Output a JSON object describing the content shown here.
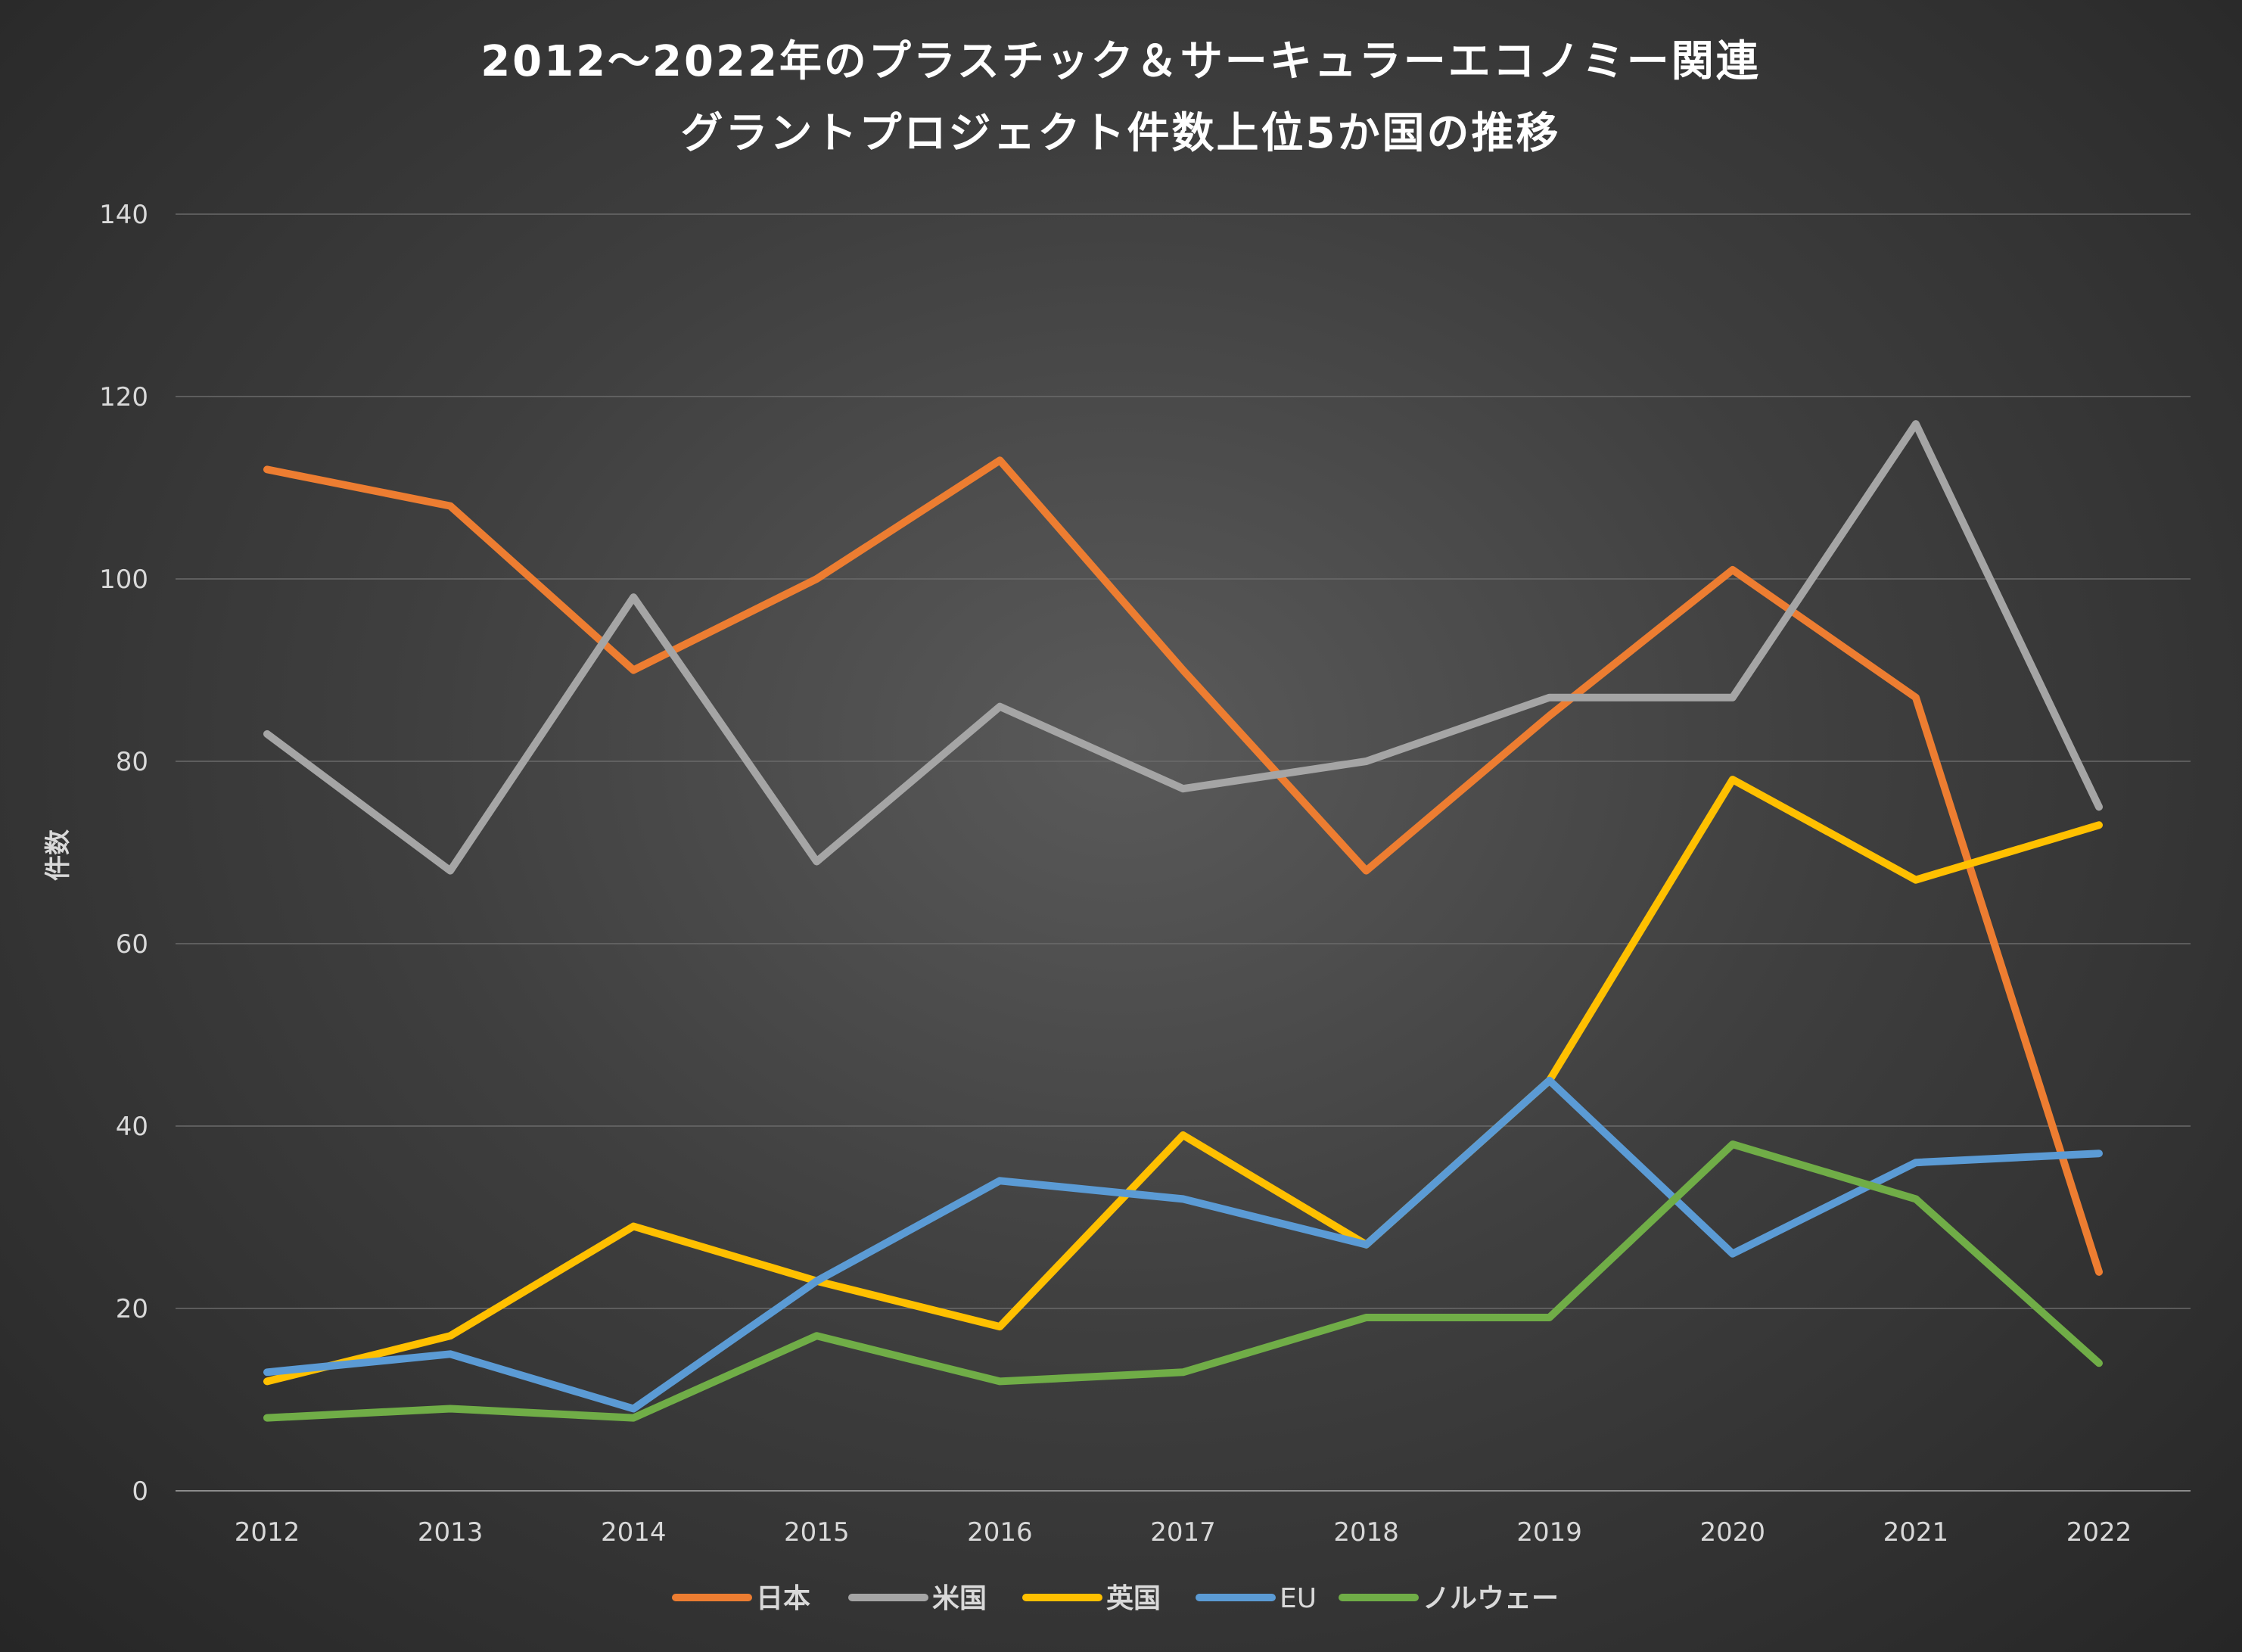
{
  "chart_data": {
    "type": "line",
    "title": [
      "2012〜2022年のプラスチック＆サーキュラーエコノミー関連",
      "グラントプロジェクト件数上位5か国の推移"
    ],
    "ylabel": "件数",
    "xlabel": "",
    "ylim": [
      0,
      140
    ],
    "yticks": [
      0,
      20,
      40,
      60,
      80,
      100,
      120,
      140
    ],
    "categories": [
      "2012",
      "2013",
      "2014",
      "2015",
      "2016",
      "2017",
      "2018",
      "2019",
      "2020",
      "2021",
      "2022"
    ],
    "grid": true,
    "legend_position": "bottom",
    "series": [
      {
        "name": "日本",
        "color": "#ed7d31",
        "values": [
          112,
          108,
          90,
          100,
          113,
          90,
          68,
          85,
          101,
          87,
          24
        ]
      },
      {
        "name": "米国",
        "color": "#a5a5a5",
        "values": [
          83,
          68,
          98,
          69,
          86,
          77,
          80,
          87,
          87,
          117,
          75
        ]
      },
      {
        "name": "英国",
        "color": "#ffc000",
        "values": [
          12,
          17,
          29,
          23,
          18,
          39,
          27,
          45,
          78,
          67,
          73
        ]
      },
      {
        "name": "EU",
        "color": "#5b9bd5",
        "values": [
          13,
          15,
          9,
          23,
          34,
          32,
          27,
          45,
          26,
          36,
          37
        ]
      },
      {
        "name": "ノルウェー",
        "color": "#70ad47",
        "values": [
          8,
          9,
          8,
          17,
          12,
          13,
          19,
          19,
          38,
          32,
          14
        ]
      }
    ]
  }
}
